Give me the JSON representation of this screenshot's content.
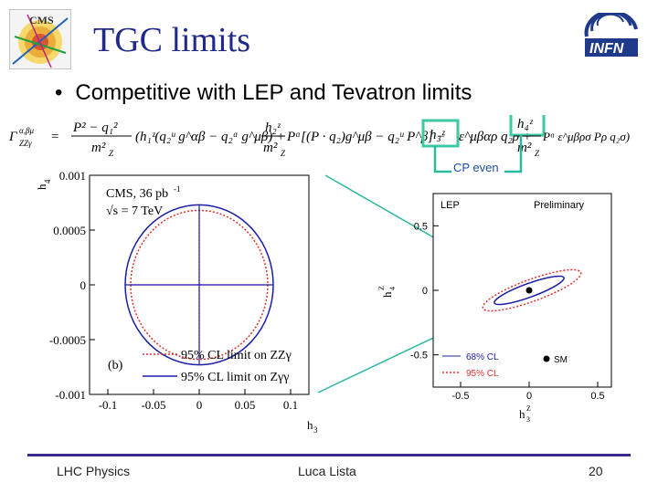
{
  "slide": {
    "title": "TGC limits",
    "bullet": "Competitive with LEP and Tevatron limits",
    "annotation": "CP even"
  },
  "formula": {
    "lhs": "Γ",
    "lhs_sup": "α,βμ",
    "lhs_sub": "ZZγ",
    "eq": "=",
    "frac1_num": "P² − q₁²",
    "frac1_den": "m²",
    "frac1_den_sub": "Z",
    "part1": "(h₁ᶻ(q₂ᵘ g^αβ − q₂ᵅ g^μβ) +",
    "frac2_num": "h₂ᶻ",
    "frac2_den": "m²",
    "frac2_den_sub": "Z",
    "part2": "Pᵅ[(P · q₂)g^μβ − q₂ᵘ P^β] −",
    "h3": "h₃ᶻ",
    "part3": "ε^μβαρ q₂ρ +",
    "h4": "h₄ᶻ",
    "frac4_den": "m²",
    "frac4_den_sub": "Z",
    "part4": "Pᵅ ε^μβρσ Pρ q₂σ)"
  },
  "left_plot": {
    "title": "CMS, 36 pb",
    "title_sup": "-1",
    "energy": "√s = 7 TeV",
    "panel": "(b)",
    "xlabel": "h",
    "xlabel_sub": "3",
    "ylabel": "h",
    "ylabel_sub": "4",
    "legend": [
      {
        "label": "95% CL limit on ZZγ",
        "style": "dotted",
        "color": "#e03030"
      },
      {
        "label": "95% CL limit on Zγγ",
        "style": "solid",
        "color": "#1c1ca8"
      }
    ]
  },
  "right_plot": {
    "lep_label": "LEP",
    "prelim": "Preliminary",
    "xlabel": "h",
    "xlabel_sup": "Z",
    "xlabel_sub": "3",
    "ylabel": "h",
    "ylabel_sup": "Z",
    "ylabel_sub": "4",
    "legend": [
      {
        "label": "68% CL",
        "color": "#1c1ca8"
      },
      {
        "label": "95% CL",
        "color": "#e03030"
      },
      {
        "label": "SM",
        "color": "#000000"
      }
    ]
  },
  "chart_data": [
    {
      "type": "scatter",
      "title": "CMS, 36 pb-1",
      "xlabel": "h3",
      "ylabel": "h4",
      "xlim": [
        -0.12,
        0.12
      ],
      "ylim": [
        -0.001,
        0.001
      ],
      "x_ticks": [
        "-0.1",
        "-0.05",
        "0",
        "0.05",
        "0.1"
      ],
      "y_ticks": [
        "0.001",
        "0.0005",
        "0",
        "-0.0005",
        "-0.001"
      ],
      "series": [
        {
          "name": "95% CL limit on ZZγ",
          "shape": "ellipse",
          "center": [
            0,
            0
          ],
          "semi_x": 0.075,
          "semi_y": 0.00068
        },
        {
          "name": "95% CL limit on Zγγ",
          "shape": "ellipse",
          "center": [
            0,
            0
          ],
          "semi_x": 0.081,
          "semi_y": 0.00073
        }
      ],
      "legend_position": "bottom"
    },
    {
      "type": "scatter",
      "title": "",
      "xlabel": "h3 Z",
      "ylabel": "h4 Z",
      "xlim": [
        -0.7,
        0.6
      ],
      "ylim": [
        -0.75,
        0.75
      ],
      "x_ticks": [
        "-0.5",
        "0",
        "0.5"
      ],
      "y_ticks": [
        "0.5",
        "0",
        "-0.5"
      ],
      "series": [
        {
          "name": "68% CL",
          "shape": "rotated-ellipse",
          "center": [
            0,
            0
          ],
          "semi_major": 0.27,
          "semi_minor": 0.05,
          "angle_deg": 20
        },
        {
          "name": "95% CL",
          "shape": "rotated-ellipse",
          "center": [
            0.02,
            0
          ],
          "semi_major": 0.38,
          "semi_minor": 0.08,
          "angle_deg": 20
        },
        {
          "name": "SM",
          "shape": "point",
          "x": 0,
          "y": 0
        }
      ],
      "legend_position": "bottom-left"
    }
  ]
}
